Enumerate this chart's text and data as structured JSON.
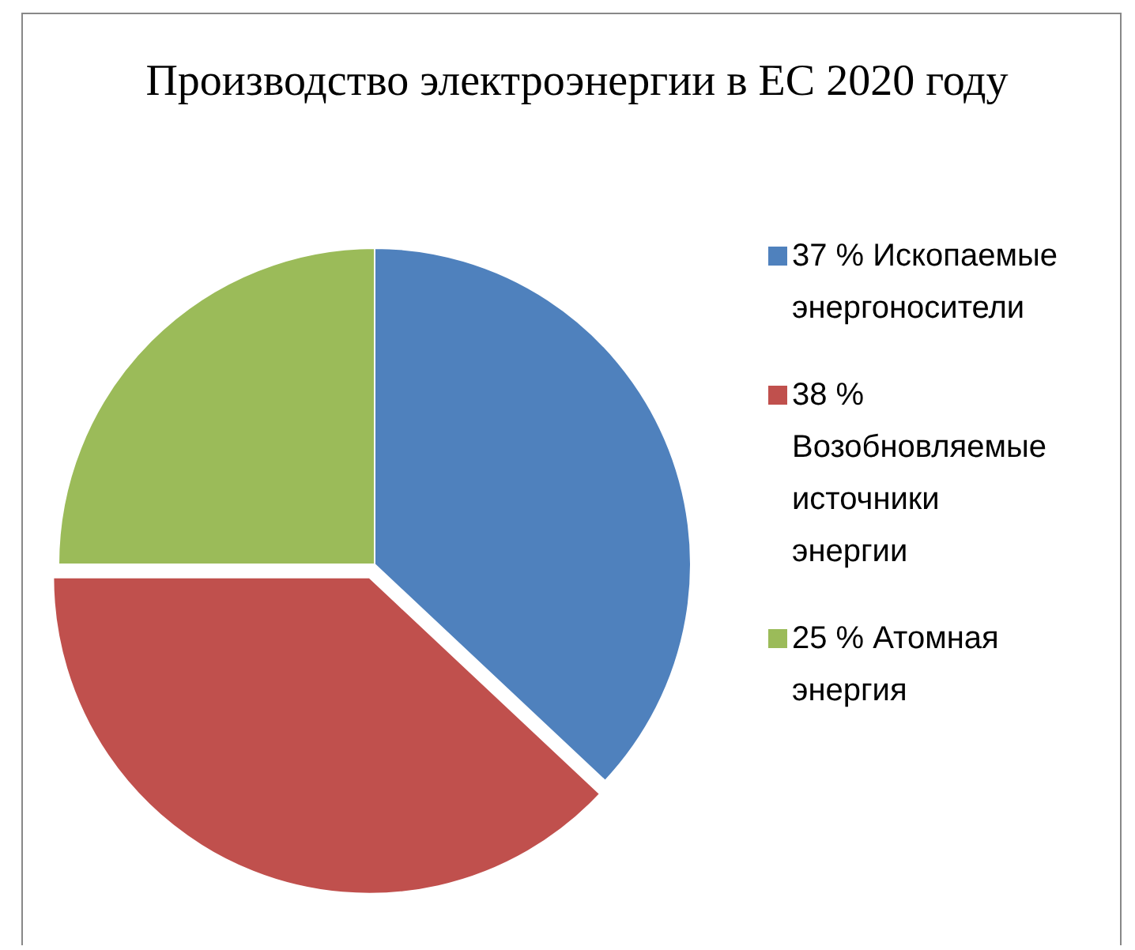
{
  "chart_data": {
    "type": "pie",
    "title": "Производство электроэнергии в ЕС 2020 году",
    "categories": [
      "37 % Ископаемые энергоносители",
      "38 % Возобновляемые источники энергии",
      "25 % Атомная энергия"
    ],
    "values": [
      37,
      38,
      25
    ],
    "colors": [
      "#4f81bd",
      "#c0504d",
      "#9bbb59"
    ],
    "legend": "right"
  }
}
